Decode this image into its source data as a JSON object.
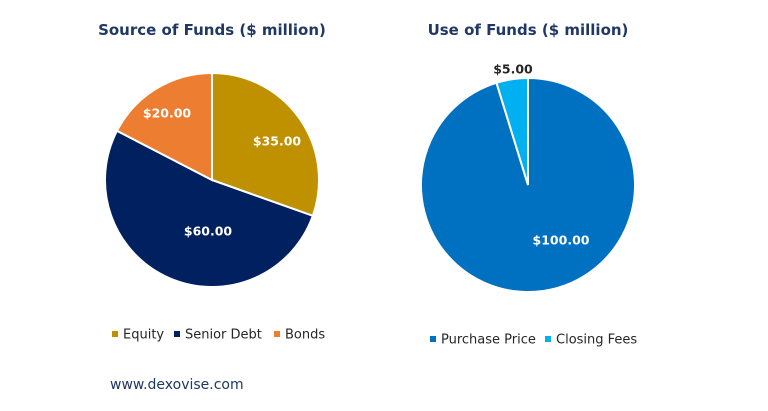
{
  "colors": {
    "equity": "#bf9000",
    "senior_debt": "#002060",
    "bonds": "#ed7d31",
    "purchase_price": "#0070c0",
    "closing_fees": "#00b0f0",
    "title": "#1f3864"
  },
  "footer": {
    "text": "www.dexovise.com"
  },
  "chart_data": [
    {
      "type": "pie",
      "title": "Source of Funds ($ million)",
      "categories": [
        "Equity",
        "Senior Debt",
        "Bonds"
      ],
      "values": [
        35,
        60,
        20
      ],
      "data_labels": [
        "$35.00",
        "$60.00",
        "$20.00"
      ],
      "colors": [
        "#bf9000",
        "#002060",
        "#ed7d31"
      ],
      "label_colors": [
        "#ffffff",
        "#ffffff",
        "#ffffff"
      ],
      "legend_position": "bottom"
    },
    {
      "type": "pie",
      "title": "Use of Funds ($ million)",
      "categories": [
        "Purchase Price",
        "Closing Fees"
      ],
      "values": [
        100,
        5
      ],
      "data_labels": [
        "$100.00",
        "$5.00"
      ],
      "colors": [
        "#0070c0",
        "#00b0f0"
      ],
      "label_colors": [
        "#ffffff",
        "#262626"
      ],
      "legend_position": "bottom"
    }
  ]
}
